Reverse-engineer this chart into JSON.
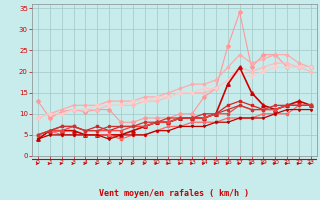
{
  "title": "",
  "xlabel": "Vent moyen/en rafales ( km/h )",
  "bg_color": "#c8ecec",
  "grid_color": "#a0c8c8",
  "axis_color": "#cc0000",
  "spine_color": "#888888",
  "xlim": [
    -0.5,
    23.5
  ],
  "ylim": [
    0,
    36
  ],
  "yticks": [
    0,
    5,
    10,
    15,
    20,
    25,
    30,
    35
  ],
  "xticks": [
    0,
    1,
    2,
    3,
    4,
    5,
    6,
    7,
    8,
    9,
    10,
    11,
    12,
    13,
    14,
    15,
    16,
    17,
    18,
    19,
    20,
    21,
    22,
    23
  ],
  "series": [
    {
      "x": [
        0,
        1,
        2,
        3,
        4,
        5,
        6,
        7,
        8,
        9,
        10,
        11,
        12,
        13,
        14,
        15,
        16,
        17,
        18,
        19,
        20,
        21,
        22,
        23
      ],
      "y": [
        13,
        9,
        10.5,
        11,
        10.5,
        11,
        11,
        8,
        8,
        9,
        9,
        9,
        10,
        10,
        14,
        16,
        26,
        34,
        21,
        24,
        24,
        21,
        21,
        21
      ],
      "color": "#ff9999",
      "lw": 0.8,
      "marker": "D",
      "ms": 2
    },
    {
      "x": [
        0,
        1,
        2,
        3,
        4,
        5,
        6,
        7,
        8,
        9,
        10,
        11,
        12,
        13,
        14,
        15,
        16,
        17,
        18,
        19,
        20,
        21,
        22,
        23
      ],
      "y": [
        9,
        10,
        11,
        12,
        12,
        12,
        13,
        13,
        13,
        14,
        14,
        15,
        16,
        17,
        17,
        18,
        21,
        24,
        22,
        23,
        24,
        24,
        22,
        21
      ],
      "color": "#ffaaaa",
      "lw": 0.9,
      "marker": "D",
      "ms": 1.5
    },
    {
      "x": [
        0,
        1,
        2,
        3,
        4,
        5,
        6,
        7,
        8,
        9,
        10,
        11,
        12,
        13,
        14,
        15,
        16,
        17,
        18,
        19,
        20,
        21,
        22,
        23
      ],
      "y": [
        9,
        10,
        10,
        11,
        11,
        11,
        12,
        12,
        12,
        13,
        13,
        14,
        15,
        15,
        15,
        16,
        18,
        21,
        20,
        21,
        22,
        22,
        21,
        20
      ],
      "color": "#ffbbbb",
      "lw": 0.9,
      "marker": "D",
      "ms": 1.5
    },
    {
      "x": [
        0,
        1,
        2,
        3,
        4,
        5,
        6,
        7,
        8,
        9,
        10,
        11,
        12,
        13,
        14,
        15,
        16,
        17,
        18,
        19,
        20,
        21,
        22,
        23
      ],
      "y": [
        9,
        10,
        10,
        11,
        11,
        12,
        12,
        12,
        13,
        13,
        14,
        14,
        15,
        15,
        16,
        16,
        18,
        20,
        19,
        20,
        21,
        21,
        21,
        21
      ],
      "color": "#ffcccc",
      "lw": 0.9,
      "marker": "D",
      "ms": 1.5
    },
    {
      "x": [
        0,
        1,
        2,
        3,
        4,
        5,
        6,
        7,
        8,
        9,
        10,
        11,
        12,
        13,
        14,
        15,
        16,
        17,
        18,
        19,
        20,
        21,
        22,
        23
      ],
      "y": [
        4,
        6,
        6,
        6,
        5,
        5,
        5,
        5,
        6,
        7,
        8,
        8,
        9,
        9,
        9,
        10,
        17,
        21,
        15,
        12,
        11,
        12,
        13,
        12
      ],
      "color": "#cc0000",
      "lw": 1.2,
      "marker": "^",
      "ms": 2.5
    },
    {
      "x": [
        0,
        1,
        2,
        3,
        4,
        5,
        6,
        7,
        8,
        9,
        10,
        11,
        12,
        13,
        14,
        15,
        16,
        17,
        18,
        19,
        20,
        21,
        22,
        23
      ],
      "y": [
        5,
        6,
        7,
        7,
        6,
        7,
        6,
        7,
        7,
        7,
        8,
        8,
        9,
        9,
        9,
        10,
        12,
        13,
        12,
        11,
        11,
        12,
        12,
        12
      ],
      "color": "#dd2222",
      "lw": 0.9,
      "marker": "s",
      "ms": 1.5
    },
    {
      "x": [
        0,
        1,
        2,
        3,
        4,
        5,
        6,
        7,
        8,
        9,
        10,
        11,
        12,
        13,
        14,
        15,
        16,
        17,
        18,
        19,
        20,
        21,
        22,
        23
      ],
      "y": [
        5,
        6,
        6,
        7,
        6,
        6,
        6,
        6,
        7,
        7,
        8,
        8,
        9,
        9,
        9,
        10,
        10,
        12,
        11,
        11,
        11,
        12,
        12,
        12
      ],
      "color": "#ee4444",
      "lw": 0.9,
      "marker": "s",
      "ms": 1.5
    },
    {
      "x": [
        0,
        1,
        2,
        3,
        4,
        5,
        6,
        7,
        8,
        9,
        10,
        11,
        12,
        13,
        14,
        15,
        16,
        17,
        18,
        19,
        20,
        21,
        22,
        23
      ],
      "y": [
        5,
        6,
        5,
        5,
        5,
        5,
        5,
        4,
        5,
        5,
        6,
        7,
        7,
        8,
        8,
        8,
        9,
        9,
        9,
        10,
        10,
        10,
        12,
        12
      ],
      "color": "#ff6666",
      "lw": 0.9,
      "marker": "s",
      "ms": 1.5
    },
    {
      "x": [
        0,
        1,
        2,
        3,
        4,
        5,
        6,
        7,
        8,
        9,
        10,
        11,
        12,
        13,
        14,
        15,
        16,
        17,
        18,
        19,
        20,
        21,
        22,
        23
      ],
      "y": [
        4,
        5,
        5,
        5,
        5,
        5,
        4,
        5,
        5,
        5,
        6,
        6,
        7,
        7,
        7,
        8,
        8,
        9,
        9,
        9,
        10,
        11,
        11,
        11
      ],
      "color": "#bb0000",
      "lw": 0.9,
      "marker": "v",
      "ms": 1.5
    },
    {
      "x": [
        0,
        1,
        2,
        3,
        4,
        5,
        6,
        7,
        8,
        9,
        10,
        11,
        12,
        13,
        14,
        15,
        16,
        17,
        18,
        19,
        20,
        21,
        22,
        23
      ],
      "y": [
        5,
        6,
        7,
        7,
        6,
        6,
        7,
        7,
        7,
        8,
        8,
        9,
        9,
        9,
        10,
        10,
        11,
        12,
        11,
        11,
        12,
        12,
        12,
        12
      ],
      "color": "#cc3333",
      "lw": 0.9,
      "marker": "o",
      "ms": 1.5
    }
  ]
}
